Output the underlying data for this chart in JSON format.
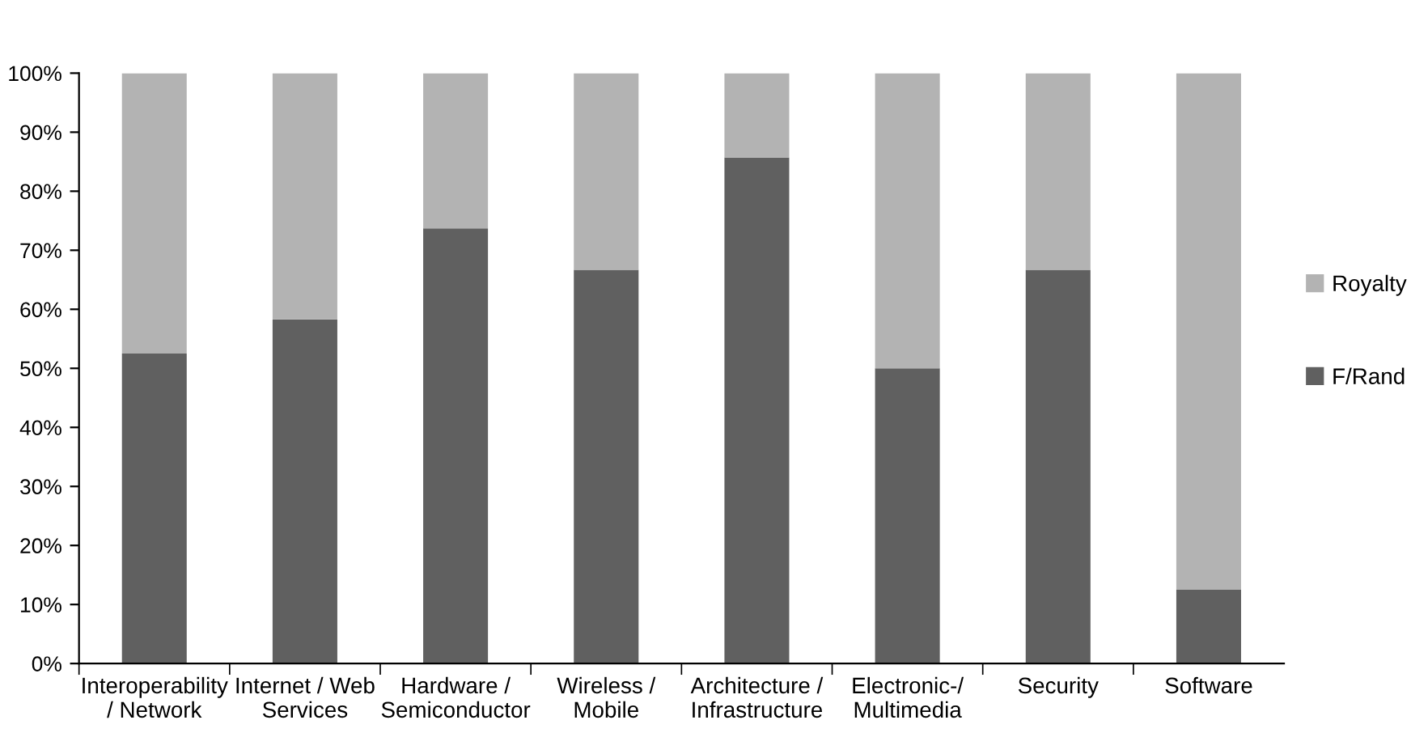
{
  "chart_data": {
    "type": "bar",
    "stacked": true,
    "categories": [
      "Interoperability\n/ Network",
      "Internet / Web\nServices",
      "Hardware /\nSemiconductor",
      "Wireless /\nMobile",
      "Architecture /\nInfrastructure",
      "Electronic-/\nMultimedia",
      "Security",
      "Software"
    ],
    "series": [
      {
        "name": "F/Rand",
        "color": "#606060",
        "values": [
          52.5,
          58.3,
          73.7,
          66.7,
          85.7,
          50,
          66.7,
          12.5
        ]
      },
      {
        "name": "Royalty",
        "color": "#b3b3b3",
        "values": [
          47.5,
          41.7,
          26.3,
          33.3,
          14.3,
          50,
          33.3,
          87.5
        ]
      }
    ],
    "ylim": [
      0,
      100
    ],
    "yticks": [
      {
        "value": 0,
        "label": "0%"
      },
      {
        "value": 10,
        "label": "10%"
      },
      {
        "value": 20,
        "label": "20%"
      },
      {
        "value": 30,
        "label": "30%"
      },
      {
        "value": 40,
        "label": "40%"
      },
      {
        "value": 50,
        "label": "50%"
      },
      {
        "value": 60,
        "label": "60%"
      },
      {
        "value": 70,
        "label": "70%"
      },
      {
        "value": 80,
        "label": "80%"
      },
      {
        "value": 90,
        "label": "90%"
      },
      {
        "value": 100,
        "label": "100%"
      }
    ],
    "grid": false,
    "legend": "right"
  }
}
